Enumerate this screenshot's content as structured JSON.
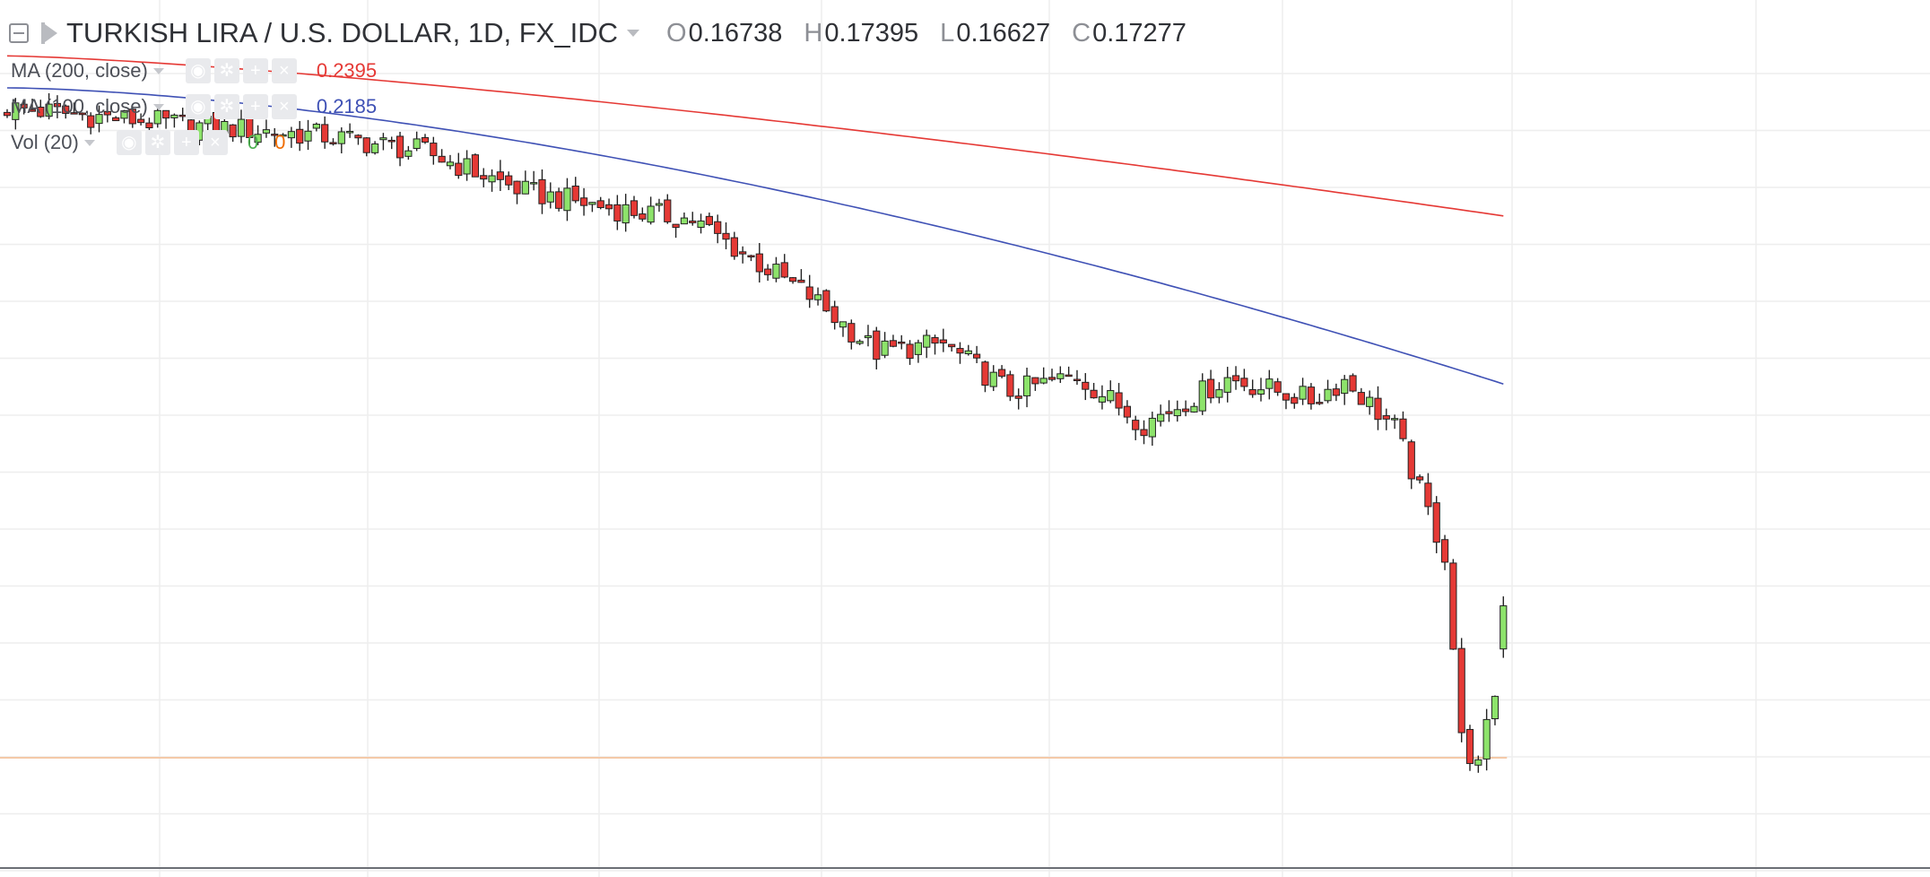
{
  "header": {
    "title": "TURKISH LIRA / U.S. DOLLAR, 1D, FX_IDC",
    "ohlc": [
      {
        "key": "O",
        "value": "0.16738"
      },
      {
        "key": "H",
        "value": "0.17395"
      },
      {
        "key": "L",
        "value": "0.16627"
      },
      {
        "key": "C",
        "value": "0.17277"
      }
    ]
  },
  "indicators": {
    "ma200": {
      "label": "MA (200, close)",
      "value": "0.2395",
      "color": "#e53935"
    },
    "ma100": {
      "label": "MA (100, close)",
      "value": "0.2185",
      "color": "#3f51b5"
    },
    "vol": {
      "label": "Vol (20)",
      "value_a": "0",
      "value_b": "0",
      "color_a": "#4caf50",
      "color_b": "#ef6c00"
    }
  },
  "colors": {
    "up": "#8de36b",
    "down": "#e53935",
    "wick": "#222222",
    "grid": "#eeeeee",
    "price_line": "#f4c9a8"
  },
  "icons": [
    "collapse-icon",
    "flag-icon",
    "eye-icon",
    "gear-icon",
    "plus-icon",
    "close-icon"
  ],
  "chart_data": {
    "type": "candlestick",
    "symbol": "TURKISH LIRA / U.S. DOLLAR",
    "interval": "1D",
    "last_close": 0.17277,
    "y_range": [
      0.158,
      0.262
    ],
    "candles": [],
    "ma200": [],
    "ma100": []
  }
}
